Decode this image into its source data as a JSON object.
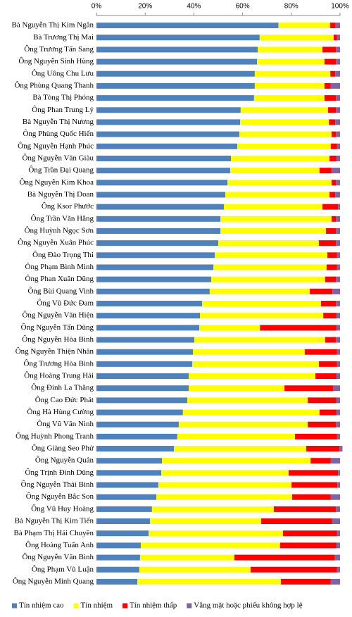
{
  "chart_data": {
    "type": "stacked_bar_horizontal",
    "categories": [
      "Bà Nguyễn Thị Kim Ngân",
      "Bà Trương Thị Mai",
      "Ông Trương Tấn Sang",
      "Ông Nguyễn Sinh Hùng",
      "Ông Uông Chu Lưu",
      "Ông Phùng Quang Thanh",
      "Bà Tòng Thị Phóng",
      "Ông Phan Trung Lý",
      "Bà Nguyễn Thị Nương",
      "Ông Phùng Quốc Hiển",
      "Ông Nguyễn Hạnh Phúc",
      "Ông Nguyễn Văn Giàu",
      "Ông Trần Đại Quang",
      "Ông Nguyễn Kim Khoa",
      "Bà Nguyễn Thị Doan",
      "Ông Ksor Phước",
      "Ông Trần Văn Hằng",
      "Ông Huỳnh Ngọc Sơn",
      "Ông Nguyễn Xuân Phúc",
      "Ông Đào Trọng Thi",
      "Ông Phạm Bình Minh",
      "Ông Phan Xuân Dũng",
      "Ông Bùi Quang Vinh",
      "Ông Vũ Đức Đam",
      "Ông Nguyễn Văn Hiện",
      "Ông Nguyễn Tấn Dũng",
      "Ông Nguyễn Hòa Bình",
      "Ông Nguyễn Thiện Nhân",
      "Ông Trương Hòa Bình",
      "Ông Hoàng Trung Hải",
      "Ông Đinh La Thăng",
      "Ông Cao Đức Phát",
      "Ông Hà Hùng Cường",
      "Ông Vũ Văn Ninh",
      "Ông Huỳnh Phong Tranh",
      "Ông Giàng Seo Phử",
      "Ông Nguyễn Quân",
      "Ông Trịnh Đình Dũng",
      "Ông Nguyễn Thái Bình",
      "Ông Nguyễn Bắc Son",
      "Ông Vũ Huy Hoàng",
      "Bà Nguyễn Thị Kim Tiến",
      "Bà Phạm Thị Hải Chuyền",
      "Ông Hoàng Tuấn Anh",
      "Ông Nguyễn Văn Bình",
      "Ông Phạm Vũ Luận",
      "Ông Nguyễn Minh Quang"
    ],
    "series": [
      {
        "name": "Tín nhiệm cao",
        "color": "#4f81bd",
        "values": [
          74.7,
          67,
          66.2,
          65.9,
          65,
          65,
          64.7,
          59.2,
          59,
          58.7,
          57.8,
          55.2,
          54.9,
          53.8,
          52.9,
          52.3,
          50.9,
          50.9,
          50,
          48.6,
          48,
          47.1,
          46.5,
          43.4,
          42.5,
          42.2,
          40.2,
          39.6,
          39.3,
          37.9,
          37.9,
          37.3,
          35.5,
          33.8,
          33.2,
          31.8,
          26.9,
          26.6,
          25.4,
          24.6,
          22.8,
          22,
          21.4,
          18.2,
          17.9,
          17.6,
          16.8
        ]
      },
      {
        "name": "Tín nhiệm",
        "color": "#ffff00",
        "values": [
          21.2,
          30.4,
          26.6,
          27.7,
          31,
          28.6,
          28.9,
          35.9,
          36.4,
          37.8,
          38.4,
          40.5,
          36.7,
          42.7,
          42.8,
          40.5,
          45.6,
          43.3,
          41.3,
          46.2,
          46.5,
          46.8,
          41.1,
          48.8,
          50.6,
          24.9,
          53.7,
          45.9,
          52,
          52,
          39.3,
          49.4,
          56.1,
          52.9,
          48.3,
          54.3,
          61,
          52.3,
          54.7,
          55.7,
          50,
          45.6,
          55.2,
          57.2,
          38.7,
          45.7,
          58.9
        ]
      },
      {
        "name": "Tín nhiệm thấp",
        "color": "#ff0000",
        "values": [
          2.3,
          1.4,
          5.5,
          4.7,
          2,
          2.6,
          4.7,
          3.2,
          2.6,
          1.8,
          2.6,
          2.9,
          4.9,
          1.8,
          2.3,
          6.4,
          1.8,
          4.1,
          7,
          4,
          4.3,
          4.4,
          9.3,
          6.1,
          5.5,
          31.5,
          4.4,
          13.3,
          7.5,
          8.7,
          19.9,
          11.9,
          7,
          11.6,
          17.3,
          13.7,
          8.3,
          20.3,
          18.8,
          15.9,
          25.5,
          29.2,
          22.2,
          23.2,
          41.3,
          35.5,
          20.5
        ]
      },
      {
        "name": "Vắng mặt hoặc phiếu không hợp lệ",
        "color": "#8064a2",
        "values": [
          1.8,
          1.2,
          1.7,
          1.7,
          2,
          3.8,
          1.7,
          1.7,
          2,
          1.7,
          1.2,
          1.4,
          3.5,
          1.7,
          2,
          0.8,
          1.7,
          1.7,
          1.7,
          1.2,
          1.2,
          1.7,
          3.1,
          1.7,
          1.4,
          1.4,
          1.7,
          1.2,
          1.2,
          1.4,
          2.9,
          1.4,
          1.4,
          1.7,
          1.2,
          1.2,
          3.8,
          0.8,
          1.1,
          3.8,
          1.7,
          3.2,
          1.2,
          1.4,
          2.1,
          1.2,
          3.8
        ]
      }
    ],
    "xlim": [
      0,
      100
    ],
    "xticks": [
      {
        "value": 0,
        "label": "0%"
      },
      {
        "value": 20,
        "label": "20%"
      },
      {
        "value": 40,
        "label": "40%"
      },
      {
        "value": 60,
        "label": "60%"
      },
      {
        "value": 80,
        "label": "80%"
      },
      {
        "value": 100,
        "label": "100%"
      }
    ],
    "legend": "bottom"
  }
}
